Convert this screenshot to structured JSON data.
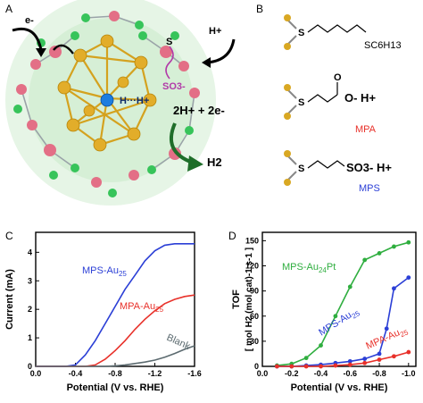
{
  "panels": {
    "a": "A",
    "b": "B",
    "c": "C",
    "d": "D"
  },
  "panel_a": {
    "electron": "e-",
    "proton": "H+",
    "sulfur": "S",
    "sulfonate": "SO3-",
    "hydride_bond": "H···H+",
    "reaction": "2H+ + 2e-",
    "product": "H2"
  },
  "panel_b": {
    "ligands": [
      {
        "name": "SC6H13",
        "color": "#000000"
      },
      {
        "name": "MPA",
        "color": "#e8312a",
        "ion": "O- H+"
      },
      {
        "name": "MPS",
        "color": "#2b3fd6",
        "ion": "SO3- H+"
      }
    ]
  },
  "colors": {
    "mps": "#2b3fd6",
    "mpa": "#e8312a",
    "blank": "#5c6b70",
    "pt": "#2fae3f"
  },
  "chart_data": [
    {
      "type": "line",
      "panel": "C",
      "xlabel": "Potential (V vs. RHE)",
      "ylabel": "Current (mA)",
      "xlim": [
        0.0,
        -1.6
      ],
      "ylim": [
        0,
        4.7
      ],
      "xticks": [
        "0.0",
        "-0.4",
        "-0.8",
        "-1.2",
        "-1.6"
      ],
      "yticks": [
        "0",
        "1",
        "2",
        "3",
        "4"
      ],
      "series": [
        {
          "name": "MPS-Au25",
          "color": "#2b3fd6",
          "x": [
            0.0,
            -0.3,
            -0.4,
            -0.5,
            -0.6,
            -0.7,
            -0.8,
            -0.9,
            -1.0,
            -1.1,
            -1.2,
            -1.3,
            -1.4,
            -1.5,
            -1.6
          ],
          "y": [
            0,
            0,
            0.05,
            0.4,
            0.9,
            1.5,
            2.1,
            2.7,
            3.2,
            3.7,
            4.05,
            4.25,
            4.3,
            4.3,
            4.3
          ]
        },
        {
          "name": "MPA-Au25",
          "color": "#e8312a",
          "x": [
            0.0,
            -0.5,
            -0.6,
            -0.7,
            -0.8,
            -0.9,
            -1.0,
            -1.1,
            -1.2,
            -1.3,
            -1.4,
            -1.5,
            -1.6
          ],
          "y": [
            0,
            0,
            0.05,
            0.25,
            0.55,
            0.9,
            1.3,
            1.65,
            1.95,
            2.2,
            2.35,
            2.45,
            2.5
          ]
        },
        {
          "name": "Blank",
          "color": "#5c6b70",
          "x": [
            0.0,
            -0.7,
            -0.8,
            -0.9,
            -1.0,
            -1.1,
            -1.2,
            -1.3,
            -1.4,
            -1.5,
            -1.6
          ],
          "y": [
            0,
            0,
            0.02,
            0.05,
            0.1,
            0.15,
            0.22,
            0.32,
            0.45,
            0.6,
            0.72
          ]
        }
      ]
    },
    {
      "type": "line",
      "panel": "D",
      "xlabel": "Potential (V vs. RHE)",
      "ylabel_line1": "TOF",
      "ylabel_line2": "[ mol H2 (mol cat)-1 s-1 ]",
      "xlim": [
        0.0,
        -1.05
      ],
      "ylim": [
        0,
        160
      ],
      "xticks": [
        "0.0",
        "-0.2",
        "-0.4",
        "-0.6",
        "-0.8",
        "-1.0"
      ],
      "yticks": [
        "0",
        "30",
        "60",
        "90",
        "120",
        "150"
      ],
      "series": [
        {
          "name": "MPS-Au24Pt",
          "color": "#2fae3f",
          "x": [
            -0.1,
            -0.2,
            -0.3,
            -0.4,
            -0.5,
            -0.6,
            -0.7,
            -0.8,
            -0.9,
            -1.0
          ],
          "y": [
            1,
            3,
            10,
            25,
            60,
            95,
            127,
            135,
            143,
            148
          ]
        },
        {
          "name": "MPS-Au25",
          "color": "#2b3fd6",
          "x": [
            -0.1,
            -0.2,
            -0.3,
            -0.4,
            -0.5,
            -0.6,
            -0.7,
            -0.8,
            -0.85,
            -0.9,
            -1.0
          ],
          "y": [
            0,
            0,
            1,
            2,
            4,
            6,
            9,
            15,
            45,
            93,
            106
          ]
        },
        {
          "name": "MPA-Au25",
          "color": "#e8312a",
          "x": [
            -0.1,
            -0.2,
            -0.3,
            -0.4,
            -0.5,
            -0.6,
            -0.7,
            -0.8,
            -0.9,
            -1.0
          ],
          "y": [
            0,
            0,
            0,
            0,
            1,
            2,
            4,
            8,
            12,
            17
          ]
        }
      ]
    }
  ]
}
